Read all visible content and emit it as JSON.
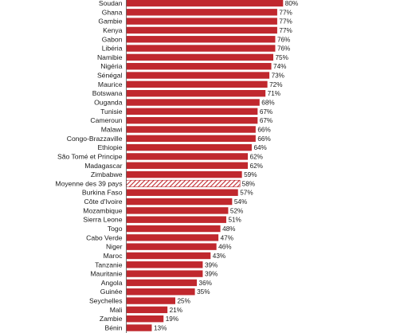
{
  "chart_data": {
    "type": "bar",
    "orientation": "horizontal",
    "value_suffix": "%",
    "title": "",
    "xlabel": "",
    "ylabel": "",
    "xlim": [
      0,
      100
    ],
    "grid": false,
    "colors": {
      "bar": "#c0282e",
      "highlight_hatch": "#c0282e",
      "axis": "#555555"
    },
    "highlight_category": "Moyenne des 39 pays",
    "categories": [
      "Soudan",
      "Ghana",
      "Gambie",
      "Kenya",
      "Gabon",
      "Libéria",
      "Namibie",
      "Nigéria",
      "Sénégal",
      "Maurice",
      "Botswana",
      "Ouganda",
      "Tunisie",
      "Cameroun",
      "Malawi",
      "Congo-Brazzaville",
      "Ethiopie",
      "São Tomé et Principe",
      "Madagascar",
      "Zimbabwe",
      "Moyenne des 39 pays",
      "Burkina Faso",
      "Côte d'Ivoire",
      "Mozambique",
      "Sierra Leone",
      "Togo",
      "Cabo Verde",
      "Niger",
      "Maroc",
      "Tanzanie",
      "Mauritanie",
      "Angola",
      "Guinée",
      "Seychelles",
      "Mali",
      "Zambie",
      "Bénin"
    ],
    "values": [
      80,
      77,
      77,
      77,
      76,
      76,
      75,
      74,
      73,
      72,
      71,
      68,
      67,
      67,
      66,
      66,
      64,
      62,
      62,
      59,
      58,
      57,
      54,
      52,
      51,
      48,
      47,
      46,
      43,
      39,
      39,
      36,
      35,
      25,
      21,
      19,
      13
    ]
  }
}
